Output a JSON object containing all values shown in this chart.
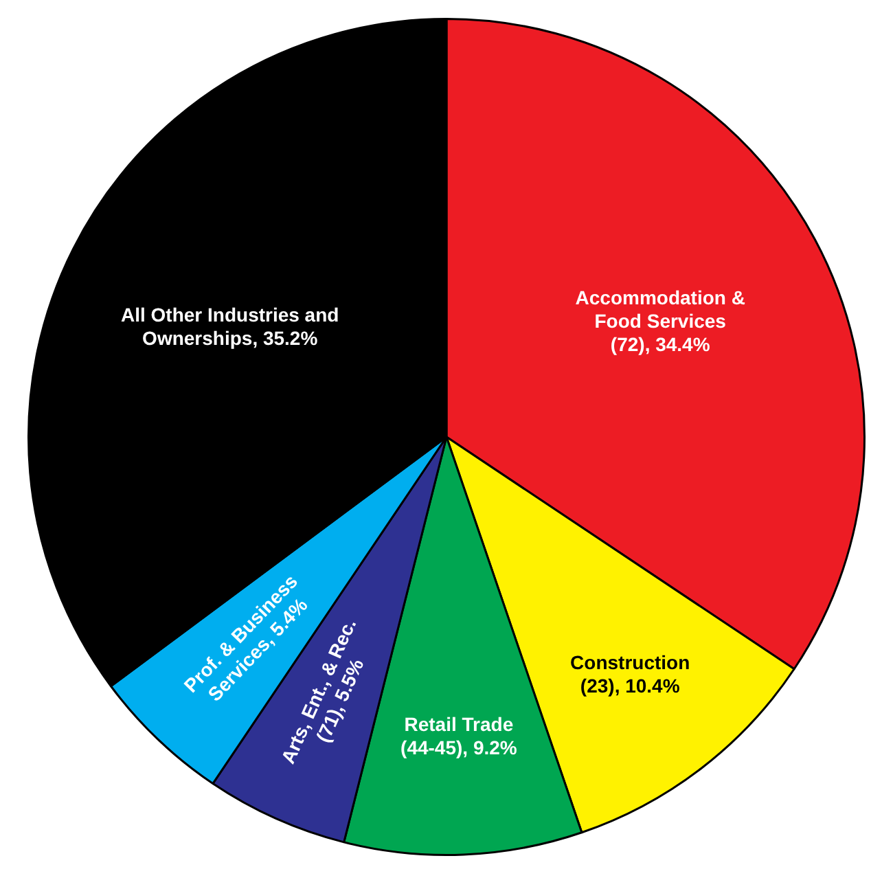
{
  "chart_data": {
    "type": "pie",
    "categories": [
      "Accommodation & Food Services (72)",
      "Construction (23)",
      "Retail Trade (44-45)",
      "Arts, Ent., & Rec. (71)",
      "Prof. & Business Services",
      "All Other Industries and Ownerships"
    ],
    "values": [
      34.4,
      10.4,
      9.2,
      5.5,
      5.4,
      35.2
    ],
    "value_labels": [
      "34.4%",
      "10.4%",
      "9.2%",
      "5.5%",
      "5.4%",
      "35.2%"
    ],
    "colors": [
      "#ed1c24",
      "#fff200",
      "#00a651",
      "#2e3192",
      "#00aeef",
      "#000000"
    ],
    "legend": false
  }
}
